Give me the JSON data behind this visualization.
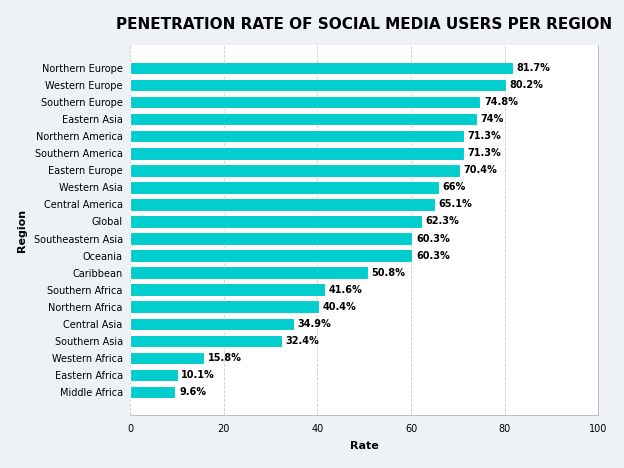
{
  "title": "PENETRATION RATE OF SOCIAL MEDIA USERS PER REGION",
  "xlabel": "Rate",
  "ylabel": "Region",
  "xlim": [
    0,
    100
  ],
  "bar_color": "#00CDCD",
  "figure_bg": "#eef2f7",
  "axes_bg": "#ffffff",
  "regions": [
    "Middle Africa",
    "Eastern Africa",
    "Western Africa",
    "Southern Asia",
    "Central Asia",
    "Northern Africa",
    "Southern Africa",
    "Caribbean",
    "Oceania",
    "Southeastern Asia",
    "Global",
    "Central America",
    "Western Asia",
    "Eastern Europe",
    "Southern America",
    "Northern America",
    "Eastern Asia",
    "Southern Europe",
    "Western Europe",
    "Northern Europe"
  ],
  "values": [
    9.6,
    10.1,
    15.8,
    32.4,
    34.9,
    40.4,
    41.6,
    50.8,
    60.3,
    60.3,
    62.3,
    65.1,
    66.0,
    70.4,
    71.3,
    71.3,
    74.0,
    74.8,
    80.2,
    81.7
  ],
  "labels": [
    "9.6%",
    "10.1%",
    "15.8%",
    "32.4%",
    "34.9%",
    "40.4%",
    "41.6%",
    "50.8%",
    "60.3%",
    "60.3%",
    "62.3%",
    "65.1%",
    "66%",
    "70.4%",
    "71.3%",
    "71.3%",
    "74%",
    "74.8%",
    "80.2%",
    "81.7%"
  ],
  "title_fontsize": 11,
  "label_fontsize": 7,
  "tick_fontsize": 7,
  "axis_label_fontsize": 8,
  "xticks": [
    0,
    20,
    40,
    60,
    80,
    100
  ],
  "xtick_labels": [
    "0",
    "20",
    "40",
    "60",
    "80",
    "100"
  ]
}
